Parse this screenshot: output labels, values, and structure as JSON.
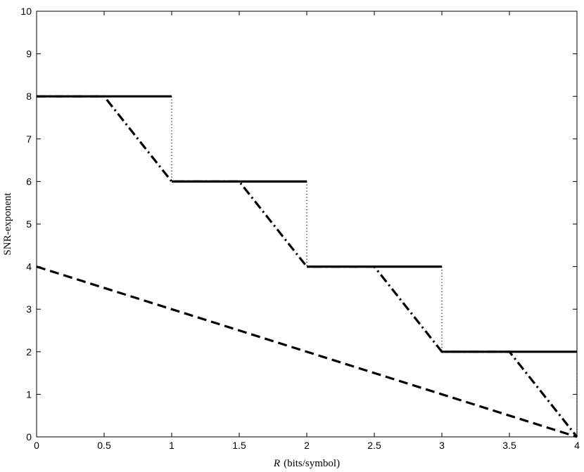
{
  "chart_data": {
    "type": "line",
    "xlabel_var": "R",
    "xlabel_unit": "(bits/symbol)",
    "ylabel": "SNR-exponent",
    "xlim": [
      0,
      4
    ],
    "ylim": [
      0,
      10
    ],
    "xticks": [
      "0",
      "0.5",
      "1",
      "1.5",
      "2",
      "2.5",
      "3",
      "3.5",
      "4"
    ],
    "yticks": [
      "0",
      "1",
      "2",
      "3",
      "4",
      "5",
      "6",
      "7",
      "8",
      "9",
      "10"
    ],
    "grid": false,
    "series": [
      {
        "style": "solid",
        "color": "#000000",
        "segments": [
          [
            [
              0,
              8
            ],
            [
              1,
              8
            ]
          ],
          [
            [
              1,
              6
            ],
            [
              2,
              6
            ]
          ],
          [
            [
              2,
              4
            ],
            [
              3,
              4
            ]
          ],
          [
            [
              3,
              2
            ],
            [
              4,
              2
            ]
          ]
        ]
      },
      {
        "style": "dotted",
        "color": "#000000",
        "segments": [
          [
            [
              1,
              8
            ],
            [
              1,
              6
            ]
          ],
          [
            [
              2,
              6
            ],
            [
              2,
              4
            ]
          ],
          [
            [
              3,
              4
            ],
            [
              3,
              2
            ]
          ],
          [
            [
              4,
              2
            ],
            [
              4,
              0
            ]
          ]
        ]
      },
      {
        "style": "dashdot",
        "color": "#000000",
        "segments": [
          [
            [
              0,
              8
            ],
            [
              0.5,
              8
            ],
            [
              1,
              6
            ],
            [
              1.5,
              6
            ],
            [
              2,
              4
            ],
            [
              2.5,
              4
            ],
            [
              3,
              2
            ],
            [
              3.5,
              2
            ],
            [
              4,
              0
            ]
          ]
        ]
      },
      {
        "style": "dashed",
        "color": "#000000",
        "segments": [
          [
            [
              0,
              4
            ],
            [
              4,
              0
            ]
          ]
        ]
      }
    ]
  }
}
